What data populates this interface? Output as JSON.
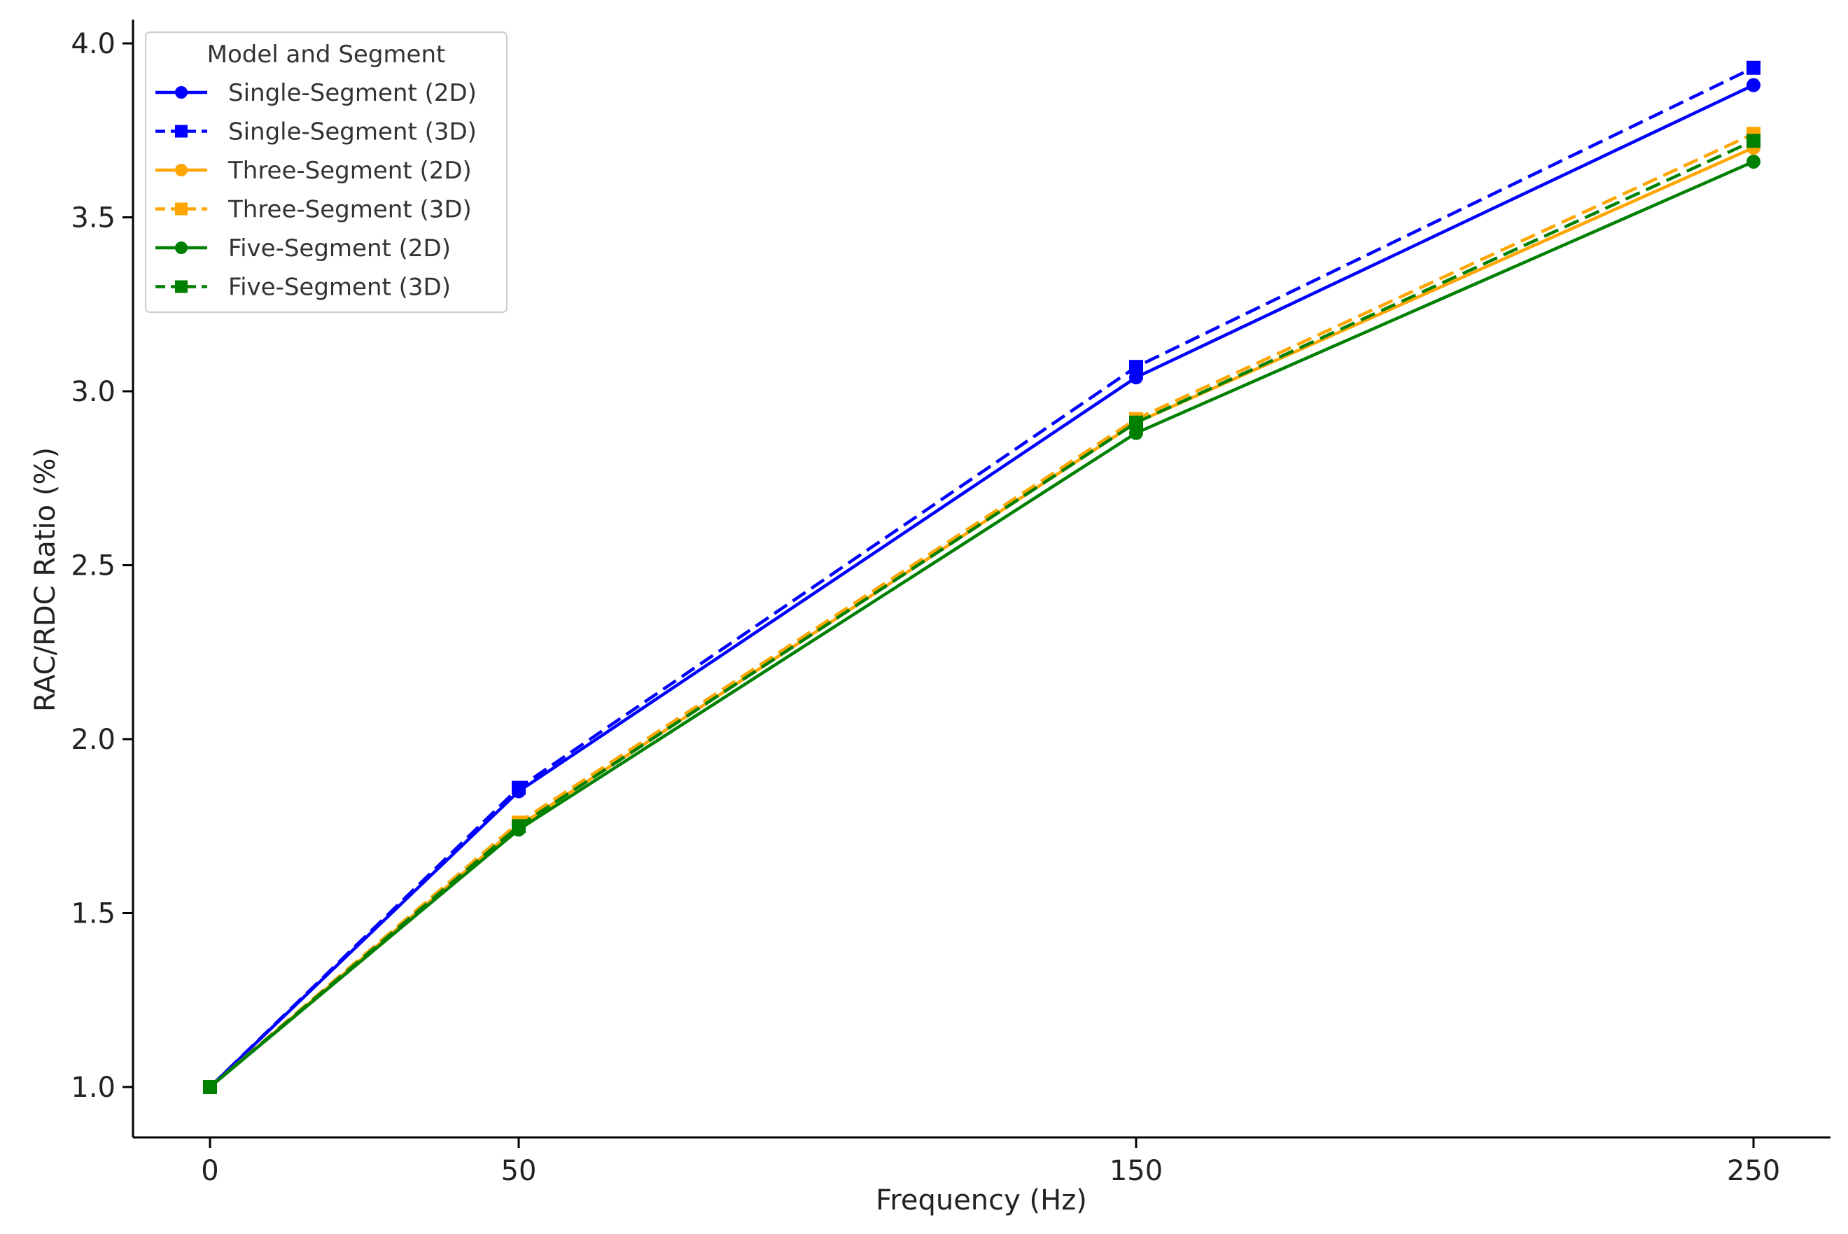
{
  "chart_data": {
    "type": "line",
    "title": "",
    "xlabel": "Frequency (Hz)",
    "ylabel": "RAC/RDC Ratio (%)",
    "x_categories": [
      "0",
      "50",
      "150",
      "250"
    ],
    "x": [
      0,
      50,
      150,
      250
    ],
    "yticks": [
      "1.0",
      "1.5",
      "2.0",
      "2.5",
      "3.0",
      "3.5",
      "4.0"
    ],
    "ylim": [
      0.85,
      4.07
    ],
    "grid": false,
    "legend_title": "Model and Segment",
    "legend_position": "top-left",
    "series": [
      {
        "name": "Single-Segment (2D)",
        "values": [
          1.0,
          1.85,
          3.04,
          3.88
        ],
        "color": "#0000ff",
        "dashed": false,
        "marker": "circle"
      },
      {
        "name": "Single-Segment (3D)",
        "values": [
          1.0,
          1.86,
          3.07,
          3.93
        ],
        "color": "#0000ff",
        "dashed": true,
        "marker": "square"
      },
      {
        "name": "Three-Segment (2D)",
        "values": [
          1.0,
          1.75,
          2.91,
          3.7
        ],
        "color": "#ffa500",
        "dashed": false,
        "marker": "circle"
      },
      {
        "name": "Three-Segment (3D)",
        "values": [
          1.0,
          1.76,
          2.92,
          3.74
        ],
        "color": "#ffa500",
        "dashed": true,
        "marker": "square"
      },
      {
        "name": "Five-Segment (2D)",
        "values": [
          1.0,
          1.74,
          2.88,
          3.66
        ],
        "color": "#008000",
        "dashed": false,
        "marker": "circle"
      },
      {
        "name": "Five-Segment (3D)",
        "values": [
          1.0,
          1.75,
          2.91,
          3.72
        ],
        "color": "#008000",
        "dashed": true,
        "marker": "square"
      }
    ]
  }
}
